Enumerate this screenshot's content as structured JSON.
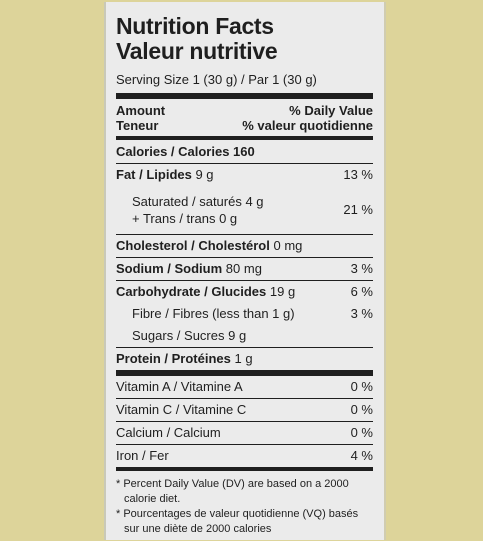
{
  "heading": {
    "title_en": "Nutrition Facts",
    "title_fr": "Valeur nutritive",
    "serving": "Serving Size 1 (30 g) / Par 1 (30 g)"
  },
  "columns": {
    "amount_en": "Amount",
    "amount_fr": "Teneur",
    "dv_en": "% Daily Value",
    "dv_fr": "% valeur quotidienne"
  },
  "calories": "Calories / Calories 160",
  "fat": {
    "bold_label": "Fat / Lipides",
    "amount": "9 g",
    "pct": "13 %"
  },
  "saturated": {
    "label": "Saturated / saturés 4 g",
    "trans": "+ Trans / trans 0 g",
    "pct": "21 %"
  },
  "cholesterol": {
    "bold_label": "Cholesterol / Cholestérol",
    "amount": "0 mg"
  },
  "sodium": {
    "bold_label": "Sodium / Sodium",
    "amount": "80 mg",
    "pct": "3 %"
  },
  "carbohydrate": {
    "bold_label": "Carbohydrate / Glucides",
    "amount": "19 g",
    "pct": "6 %"
  },
  "fibre": {
    "label": "Fibre / Fibres (less than 1 g)",
    "pct": "3 %"
  },
  "sugars": {
    "label": "Sugars / Sucres 9 g"
  },
  "protein": {
    "bold_label": "Protein / Protéines",
    "amount": "1 g"
  },
  "vitamin_a": {
    "label": "Vitamin A / Vitamine A",
    "pct": "0 %"
  },
  "vitamin_c": {
    "label": "Vitamin C / Vitamine C",
    "pct": "0 %"
  },
  "calcium": {
    "label": "Calcium / Calcium",
    "pct": "0 %"
  },
  "iron": {
    "label": "Iron / Fer",
    "pct": "4 %"
  },
  "footnotes": {
    "en": "* Percent Daily Value (DV) are based on a 2000 calorie diet.",
    "fr": "* Pourcentages de valeur quotidienne (VQ) basés sur une diète de 2000 calories"
  }
}
